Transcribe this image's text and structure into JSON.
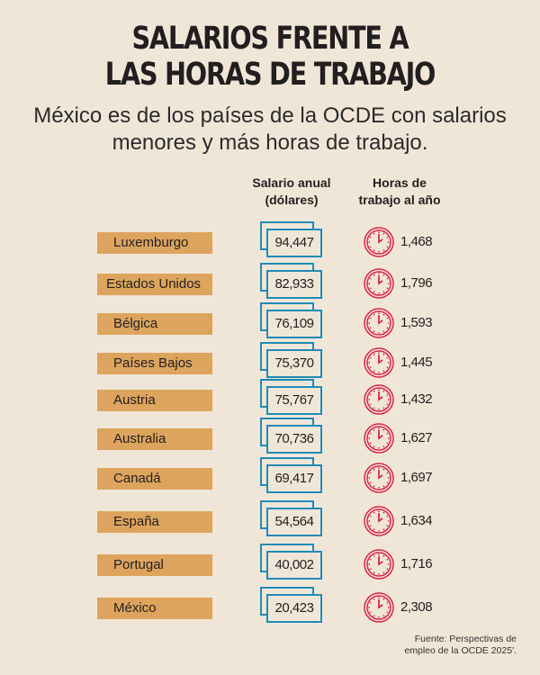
{
  "header": {
    "title_line1": "SALARIOS FRENTE A",
    "title_line2": "LAS HORAS DE TRABAJO",
    "subtitle_line1": "México es de los países de la OCDE con salarios",
    "subtitle_line2": "menores y más horas de trabajo."
  },
  "colors": {
    "background": "#f0e6d8",
    "label": "#dda45d",
    "bill": "#1f8bb8",
    "clock": "#d9274a"
  },
  "chart_data": {
    "type": "table",
    "columns": [
      {
        "line1": "Salario anual",
        "line2": "(dólares)"
      },
      {
        "line1": "Horas de",
        "line2": "trabajo al año"
      }
    ],
    "icons": {
      "salary": "banknote-icon",
      "hours": "clock-icon"
    },
    "rows": [
      {
        "country": "Luxemburgo",
        "salary": "94,447",
        "hours": "1,468"
      },
      {
        "country": "Estados Unidos",
        "salary": "82,933",
        "hours": "1,796"
      },
      {
        "country": "Bélgica",
        "salary": "76,109",
        "hours": "1,593"
      },
      {
        "country": "Países Bajos",
        "salary": "75,370",
        "hours": "1,445"
      },
      {
        "country": "Austria",
        "salary": "75,767",
        "hours": "1,432"
      },
      {
        "country": "Australia",
        "salary": "70,736",
        "hours": "1,627"
      },
      {
        "country": "Canadá",
        "salary": "69,417",
        "hours": "1,697"
      },
      {
        "country": "España",
        "salary": "54,564",
        "hours": "1,634"
      },
      {
        "country": "Portugal",
        "salary": "40,002",
        "hours": "1,716"
      },
      {
        "country": "México",
        "salary": "20,423",
        "hours": "2,308"
      }
    ]
  },
  "footer": {
    "source_line1": "Fuente: Perspectivas de",
    "source_line2": "empleo de la OCDE 2025'."
  }
}
